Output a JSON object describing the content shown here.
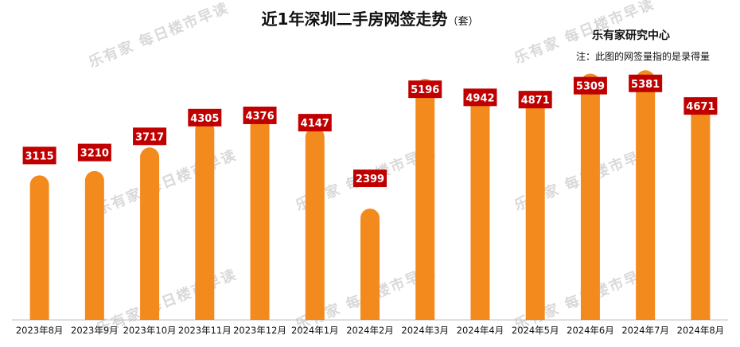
{
  "title": "近1年深圳二手房网签走势",
  "title_unit": "（套）",
  "source": "乐有家研究中心",
  "note": "注：此图的网签量指的是录得量",
  "watermark_logo": "乐有家",
  "watermark_text": "每日楼市早读",
  "colors": {
    "bar": "#F28A1E",
    "label_bg": "#C00000",
    "label_text": "#FFFFFF",
    "axis": "#BFBFBF"
  },
  "chart_data": {
    "type": "bar",
    "title": "近1年深圳二手房网签走势",
    "categories": [
      "2023年8月",
      "2023年9月",
      "2023年10月",
      "2023年11月",
      "2023年12月",
      "2024年1月",
      "2024年2月",
      "2024年3月",
      "2024年4月",
      "2024年5月",
      "2024年6月",
      "2024年7月",
      "2024年8月"
    ],
    "values": [
      3115,
      3210,
      3717,
      4305,
      4376,
      4147,
      2399,
      5196,
      4942,
      4871,
      5309,
      5381,
      4671
    ],
    "ylim": [
      0,
      5500
    ],
    "grid": false,
    "data_labels": true
  }
}
